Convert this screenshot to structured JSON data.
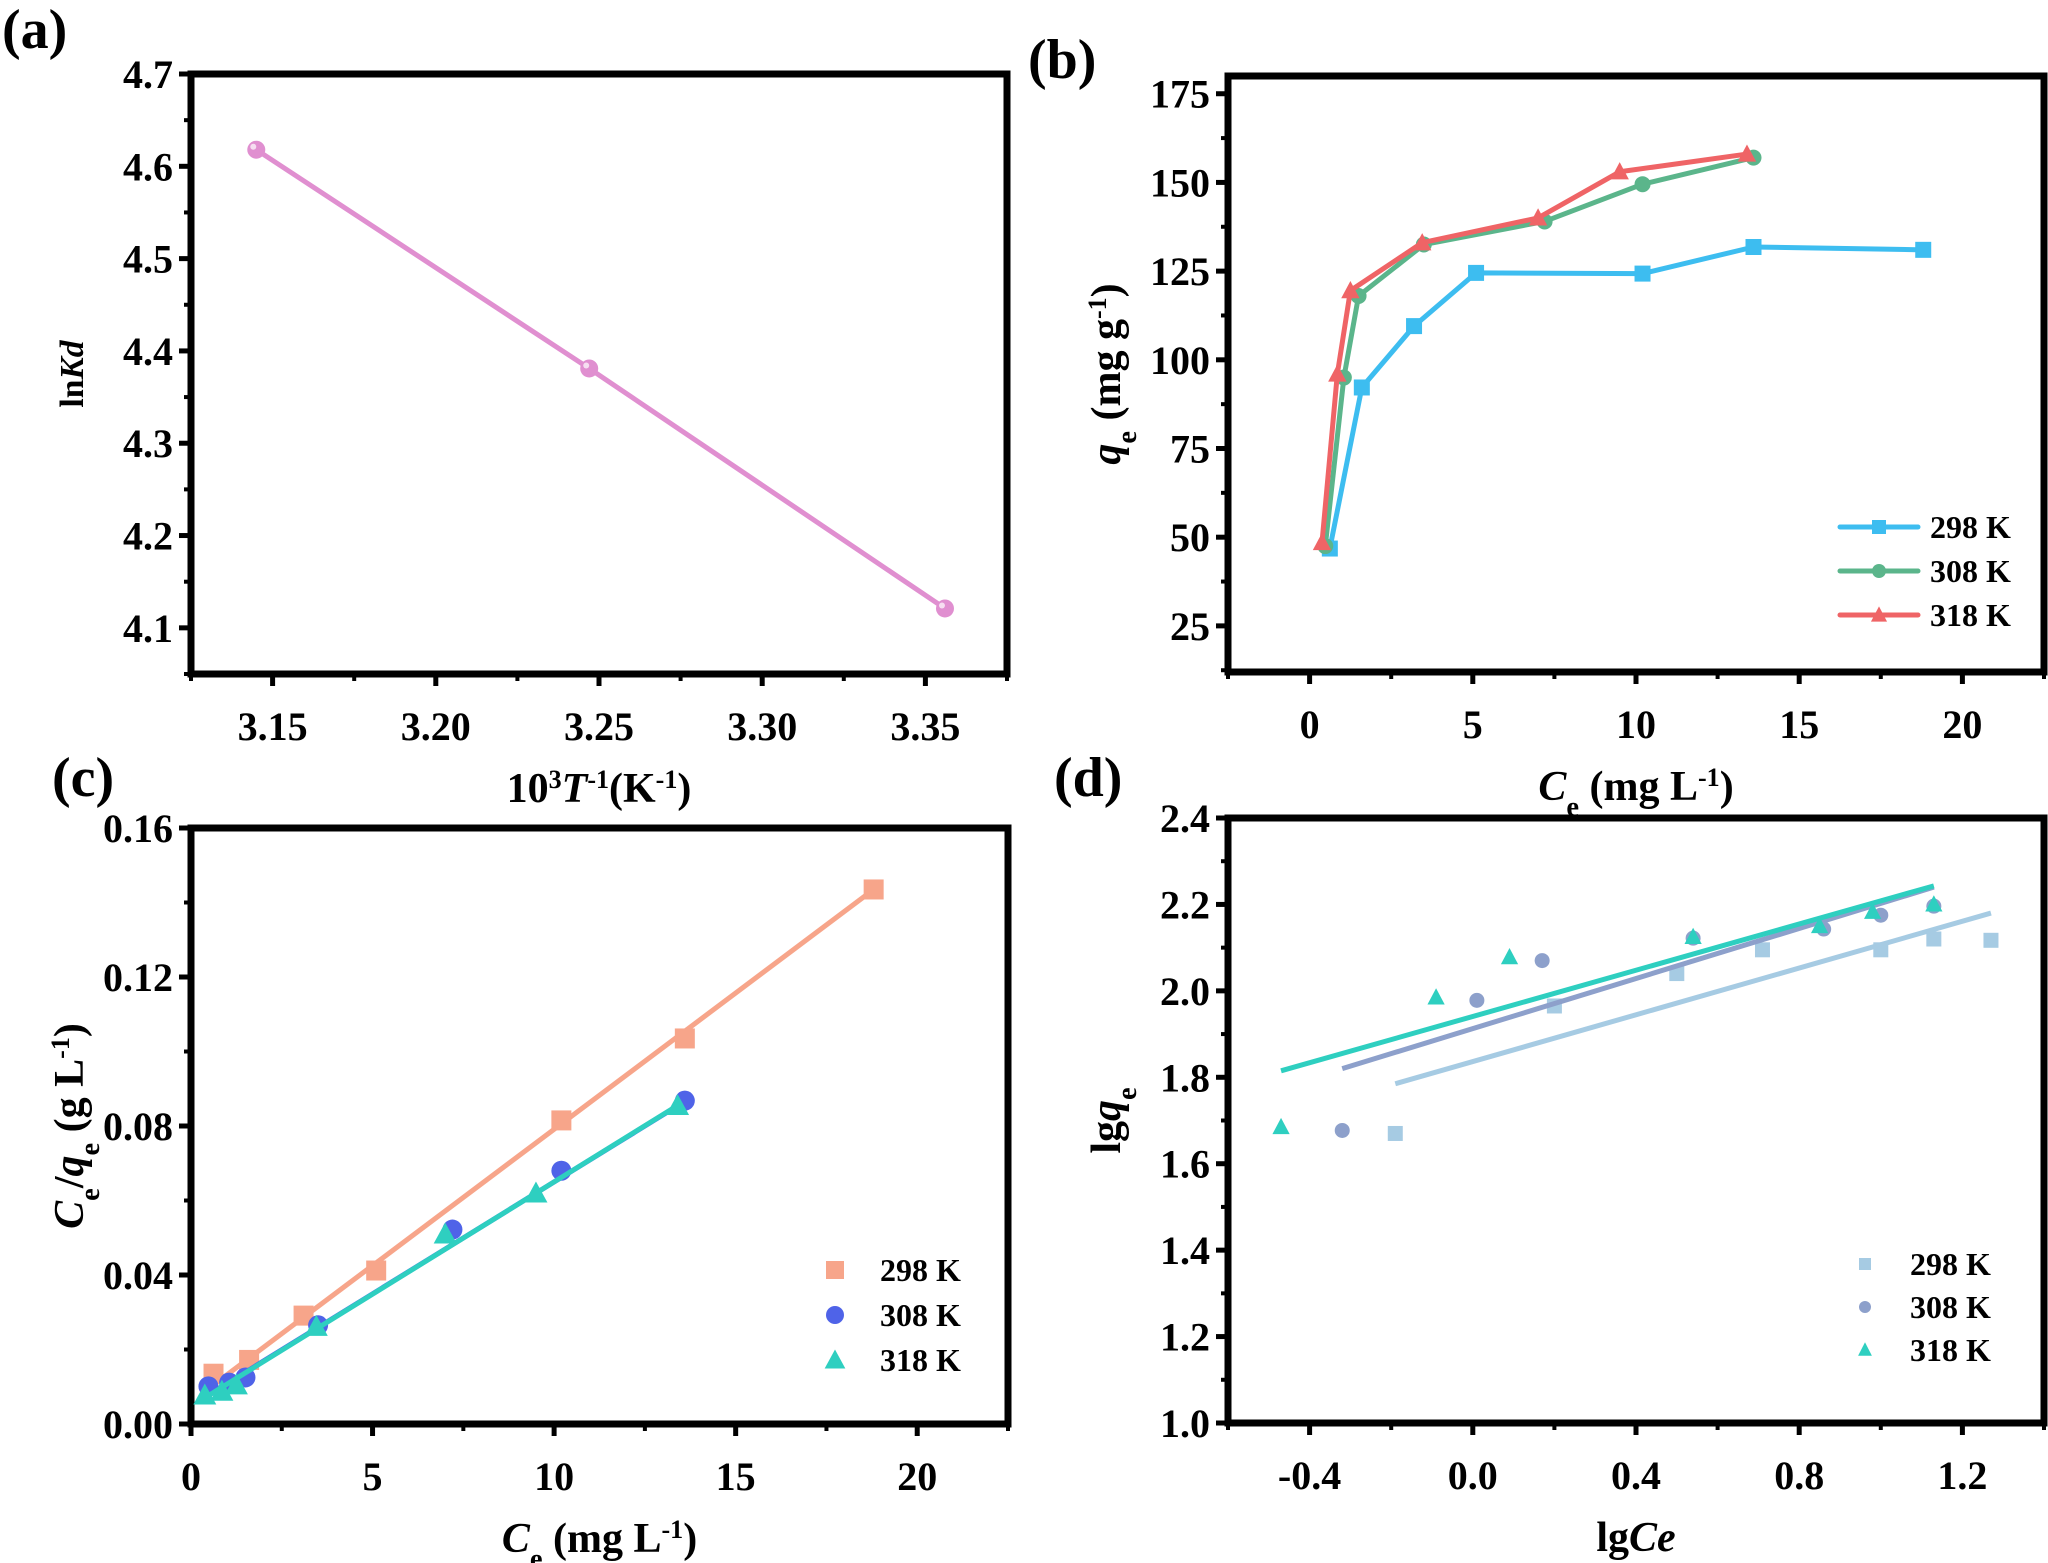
{
  "figure": {
    "panel_labels": [
      "(a)",
      "(b)",
      "(c)",
      "(d)"
    ]
  },
  "chart_data": [
    {
      "id": "a",
      "type": "line",
      "title": "",
      "xlabel": "10³T⁻¹(K⁻¹)",
      "xlabel_parts": [
        "10",
        "3",
        "T",
        "-1",
        "(K",
        "-1",
        ")"
      ],
      "ylabel": "lnKd",
      "ylabel_parts": [
        "ln",
        "Kd"
      ],
      "xlim": [
        3.125,
        3.375
      ],
      "ylim": [
        4.05,
        4.7
      ],
      "xticks": [
        3.15,
        3.2,
        3.25,
        3.3,
        3.35
      ],
      "xtick_labels": [
        "3.15",
        "3.20",
        "3.25",
        "3.30",
        "3.35"
      ],
      "yticks": [
        4.1,
        4.2,
        4.3,
        4.4,
        4.5,
        4.6,
        4.7
      ],
      "ytick_labels": [
        "4.1",
        "4.2",
        "4.3",
        "4.4",
        "4.5",
        "4.6",
        "4.7"
      ],
      "grid": false,
      "legend": null,
      "series": [
        {
          "name": "lnKd",
          "color": "#e08fd0",
          "marker": "circle",
          "x": [
            3.145,
            3.247,
            3.356
          ],
          "y": [
            4.618,
            4.381,
            4.121
          ]
        }
      ]
    },
    {
      "id": "b",
      "type": "line",
      "title": "",
      "xlabel": "Ce (mg L⁻¹)",
      "xlabel_parts": [
        "C",
        "e",
        " (mg L",
        "-1",
        ")"
      ],
      "ylabel": "qe (mg g⁻¹)",
      "ylabel_parts": [
        "q",
        "e",
        " (mg g",
        "-1",
        ")"
      ],
      "xlim": [
        -2.5,
        22.5
      ],
      "ylim": [
        12,
        180
      ],
      "xticks": [
        0,
        5,
        10,
        15,
        20
      ],
      "xtick_labels": [
        "0",
        "5",
        "10",
        "15",
        "20"
      ],
      "yticks": [
        25,
        50,
        75,
        100,
        125,
        150,
        175
      ],
      "ytick_labels": [
        "25",
        "50",
        "75",
        "100",
        "125",
        "150",
        "175"
      ],
      "grid": false,
      "legend": "bottom-right",
      "series": [
        {
          "name": "298 K",
          "color": "#3dbdf0",
          "marker": "square",
          "x": [
            0.62,
            1.6,
            3.2,
            5.1,
            10.2,
            13.6,
            18.8
          ],
          "y": [
            46.8,
            92.2,
            109.5,
            124.5,
            124.3,
            131.8,
            131.0
          ]
        },
        {
          "name": "308 K",
          "color": "#5bb58b",
          "marker": "circle",
          "x": [
            0.48,
            1.05,
            1.5,
            3.5,
            7.2,
            10.2,
            13.6
          ],
          "y": [
            47.5,
            95.0,
            118.0,
            132.5,
            139.0,
            149.5,
            157.0
          ]
        },
        {
          "name": "318 K",
          "color": "#ef6466",
          "marker": "triangle",
          "x": [
            0.38,
            0.85,
            1.25,
            3.45,
            7.0,
            9.5,
            13.4
          ],
          "y": [
            48.5,
            96.0,
            119.5,
            133.0,
            140.0,
            153.0,
            158.0
          ]
        }
      ]
    },
    {
      "id": "c",
      "type": "scatter",
      "title": "",
      "xlabel": "Ce (mg L⁻¹)",
      "xlabel_parts": [
        "C",
        "e",
        " (mg L",
        "-1",
        ")"
      ],
      "ylabel": "Ce/qe (g L⁻¹)",
      "ylabel_parts": [
        "C",
        "e",
        "/",
        "q",
        "e",
        " (g L",
        "-1",
        ")"
      ],
      "xlim": [
        0,
        22.5
      ],
      "ylim": [
        0,
        0.16
      ],
      "xticks": [
        0,
        5,
        10,
        15,
        20
      ],
      "xtick_labels": [
        "0",
        "5",
        "10",
        "15",
        "20"
      ],
      "yticks": [
        0,
        0.04,
        0.08,
        0.12,
        0.16
      ],
      "ytick_labels": [
        "0.00",
        "0.04",
        "0.08",
        "0.12",
        "0.16"
      ],
      "grid": false,
      "legend": "bottom-right",
      "series": [
        {
          "name": "298 K",
          "color": "#f7a58a",
          "marker": "square",
          "x": [
            0.62,
            1.6,
            3.1,
            5.1,
            10.2,
            13.6,
            18.8
          ],
          "y": [
            0.0135,
            0.0172,
            0.0291,
            0.0412,
            0.0815,
            0.1035,
            0.1435
          ],
          "fit": {
            "x": [
              0.62,
              18.8
            ],
            "y": [
              0.0105,
              0.1435
            ]
          }
        },
        {
          "name": "308 K",
          "color": "#4f63e8",
          "marker": "circle",
          "x": [
            0.48,
            1.05,
            1.5,
            3.5,
            7.2,
            10.2,
            13.6
          ],
          "y": [
            0.0101,
            0.0111,
            0.0125,
            0.0265,
            0.0522,
            0.068,
            0.0868
          ],
          "fit": {
            "x": [
              0.48,
              13.6
            ],
            "y": [
              0.0078,
              0.0866
            ]
          }
        },
        {
          "name": "318 K",
          "color": "#2ecfc0",
          "marker": "triangle",
          "x": [
            0.38,
            0.85,
            1.25,
            3.45,
            7.0,
            9.5,
            13.4
          ],
          "y": [
            0.0078,
            0.0088,
            0.0105,
            0.0262,
            0.051,
            0.062,
            0.0855
          ],
          "fit": {
            "x": [
              0.38,
              13.4
            ],
            "y": [
              0.007,
              0.0855
            ]
          }
        }
      ]
    },
    {
      "id": "d",
      "type": "scatter",
      "title": "",
      "xlabel": "lgCe",
      "xlabel_parts": [
        "lg",
        "Ce"
      ],
      "ylabel": "lgqe",
      "ylabel_parts": [
        "lg",
        "q",
        "e"
      ],
      "xlim": [
        -0.6,
        1.4
      ],
      "ylim": [
        1.0,
        2.4
      ],
      "xticks": [
        -0.4,
        0.0,
        0.4,
        0.8,
        1.2
      ],
      "xtick_labels": [
        "-0.4",
        "0.0",
        "0.4",
        "0.8",
        "1.2"
      ],
      "yticks": [
        1.0,
        1.2,
        1.4,
        1.6,
        1.8,
        2.0,
        2.2,
        2.4
      ],
      "ytick_labels": [
        "1.0",
        "1.2",
        "1.4",
        "1.6",
        "1.8",
        "2.0",
        "2.2",
        "2.4"
      ],
      "grid": false,
      "legend": "bottom-right",
      "series": [
        {
          "name": "298 K",
          "color": "#a6cbe3",
          "marker": "square",
          "x": [
            -0.19,
            0.2,
            0.5,
            0.71,
            1.0,
            1.13,
            1.27
          ],
          "y": [
            1.67,
            1.965,
            2.04,
            2.095,
            2.095,
            2.12,
            2.117
          ],
          "fit": {
            "x": [
              -0.19,
              1.27
            ],
            "y": [
              1.785,
              2.18
            ]
          }
        },
        {
          "name": "308 K",
          "color": "#8da0cb",
          "marker": "circle",
          "x": [
            -0.32,
            0.01,
            0.17,
            0.54,
            0.86,
            1.0,
            1.13
          ],
          "y": [
            1.677,
            1.978,
            2.07,
            2.122,
            2.143,
            2.175,
            2.196
          ],
          "fit": {
            "x": [
              -0.32,
              1.13
            ],
            "y": [
              1.82,
              2.24
            ]
          }
        },
        {
          "name": "318 K",
          "color": "#2ecfc0",
          "marker": "triangle",
          "x": [
            -0.47,
            -0.09,
            0.09,
            0.54,
            0.85,
            0.98,
            1.13
          ],
          "y": [
            1.685,
            1.985,
            2.078,
            2.125,
            2.15,
            2.183,
            2.2
          ],
          "fit": {
            "x": [
              -0.47,
              1.13
            ],
            "y": [
              1.815,
              2.243
            ]
          }
        }
      ]
    }
  ]
}
